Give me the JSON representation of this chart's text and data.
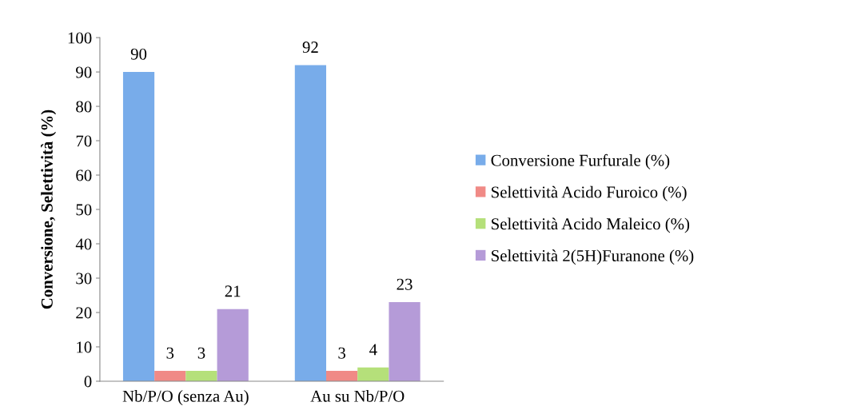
{
  "chart_data": {
    "type": "bar",
    "ylabel": "Conversione, Selettività (%)",
    "categories": [
      "Nb/P/O (senza Au)",
      "Au su Nb/P/O"
    ],
    "series": [
      {
        "name": "Conversione Furfurale (%)",
        "color": "#78acea",
        "values": [
          90,
          92
        ]
      },
      {
        "name": "Selettività Acido Furoico (%)",
        "color": "#f08a86",
        "values": [
          3,
          3
        ]
      },
      {
        "name": "Selettività Acido Maleico (%)",
        "color": "#b5e07a",
        "values": [
          3,
          4
        ]
      },
      {
        "name": "Selettività 2(5H)Furanone (%)",
        "color": "#b59bd8",
        "values": [
          21,
          23
        ]
      }
    ],
    "ylim": [
      0,
      100
    ],
    "yticks": [
      0,
      10,
      20,
      30,
      40,
      50,
      60,
      70,
      80,
      90,
      100
    ],
    "data_labels": true,
    "legend": "right",
    "grid": false
  }
}
